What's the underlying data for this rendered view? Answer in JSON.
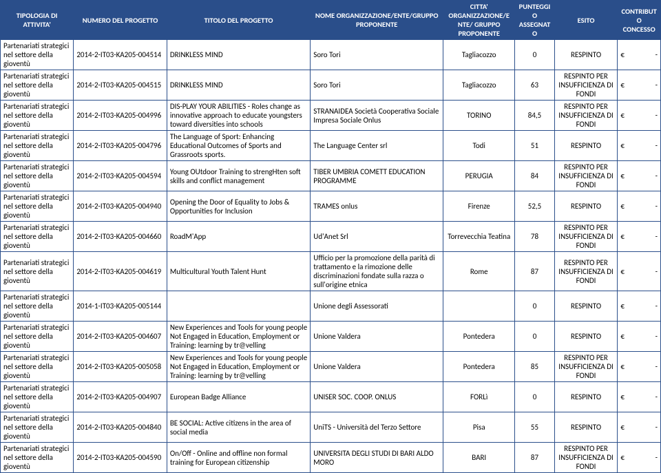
{
  "headers": {
    "tipologia": "TIPOLOGIA DI ATTIVITA'",
    "numero": "NUMERO DEL PROGETTO",
    "titolo": "TITOLO DEL PROGETTO",
    "nome_org": "NOME ORGANIZZAZIONE/ENTE/GRUPPO PROPONENTE",
    "citta": "CITTA' ORGANIZZAZIONE/ENTE/ GRUPPO PROPONENTE",
    "punteggio": "PUNTEGGIO ASSEGNATO",
    "esito": "ESITO",
    "contributo": "CONTRIBUTO CONCESSO"
  },
  "activity_label": "Partenariati strategici nel settore della gioventù",
  "currency_symbol": "€",
  "dash": "-",
  "rows": [
    {
      "num": "2014-2-IT03-KA205-004514",
      "tit": "DRINKLESS MIND",
      "org": "Soro Tori",
      "cit": "Tagliacozzo",
      "pun": "0",
      "esi": "RESPINTO"
    },
    {
      "num": "2014-2-IT03-KA205-004515",
      "tit": "DRINKLESS MIND",
      "org": "Soro Tori",
      "cit": "Tagliacozzo",
      "pun": "63",
      "esi": "RESPINTO PER INSUFFICIENZA DI FONDI"
    },
    {
      "num": "2014-2-IT03-KA205-004996",
      "tit": "DIS-PLAY YOUR ABILITIES - Roles change as innovative approach to educate youngsters toward diversities into schools",
      "org": "STRANAIDEA Società Cooperativa Sociale Impresa Sociale Onlus",
      "cit": "TORINO",
      "pun": "84,5",
      "esi": "RESPINTO PER INSUFFICIENZA DI FONDI"
    },
    {
      "num": "2014-2-IT03-KA205-004796",
      "tit": "The Language of Sport:  Enhancing Educational Outcomes of Sports and Grassroots sports.",
      "org": "The Language Center srl",
      "cit": "Todi",
      "pun": "51",
      "esi": "RESPINTO"
    },
    {
      "num": "2014-2-IT03-KA205-004594",
      "tit": "Young OUtdoor Training to strengHten soft skills and conflict management",
      "org": "TIBER UMBRIA COMETT EDUCATION PROGRAMME",
      "cit": "PERUGIA",
      "pun": "84",
      "esi": "RESPINTO PER INSUFFICIENZA DI FONDI"
    },
    {
      "num": "2014-2-IT03-KA205-004940",
      "tit": "Opening the Door of Equality to Jobs & Opportunities for Inclusion",
      "org": "TRAMES onlus",
      "cit": "Firenze",
      "pun": "52,5",
      "esi": "RESPINTO"
    },
    {
      "num": "2014-2-IT03-KA205-004660",
      "tit": "RoadM'App",
      "org": "Ud'Anet Srl",
      "cit": "Torrevecchia Teatina",
      "pun": "78",
      "esi": "RESPINTO PER INSUFFICIENZA DI FONDI"
    },
    {
      "num": "2014-2-IT03-KA205-004619",
      "tit": "Multicultural Youth Talent Hunt",
      "org": "Ufficio per la promozione della parità di trattamento e la rimozione delle discriminazioni fondate sulla razza o sull'origine etnica",
      "cit": "Rome",
      "pun": "87",
      "esi": "RESPINTO PER INSUFFICIENZA DI FONDI"
    },
    {
      "num": "2014-1-IT03-KA205-005144",
      "tit": "",
      "org": "Unione degli Assessorati",
      "cit": "",
      "pun": "0",
      "esi": "RESPINTO"
    },
    {
      "num": "2014-2-IT03-KA205-004607",
      "tit": "New Experiences and Tools for young people Not Engaged in Education, Employment or Training: learning by tr@velling",
      "org": "Unione Valdera",
      "cit": "Pontedera",
      "pun": "0",
      "esi": "RESPINTO"
    },
    {
      "num": "2014-2-IT03-KA205-005058",
      "tit": "New Experiences and Tools for young people Not Engaged in Education, Employment or Training: learning by tr@velling",
      "org": "Unione Valdera",
      "cit": "Pontedera",
      "pun": "85",
      "esi": "RESPINTO PER INSUFFICIENZA DI FONDI"
    },
    {
      "num": "2014-2-IT03-KA205-004907",
      "tit": "European Badge Alliance",
      "org": "UNISER SOC. COOP. ONLUS",
      "cit": "FORLì",
      "pun": "0",
      "esi": "RESPINTO"
    },
    {
      "num": "2014-2-IT03-KA205-004840",
      "tit": "BE SOCIAL: Active citizens in the area of social media",
      "org": "UniTS - Università del Terzo Settore",
      "cit": "Pisa",
      "pun": "55",
      "esi": "RESPINTO"
    },
    {
      "num": "2014-2-IT03-KA205-004590",
      "tit": "On/Off - Online and offline non formal training for European citizenship",
      "org": "UNIVERSITA DEGLI STUDI DI BARI ALDO MORO",
      "cit": "BARI",
      "pun": "87",
      "esi": "RESPINTO PER INSUFFICIENZA DI FONDI"
    }
  ]
}
